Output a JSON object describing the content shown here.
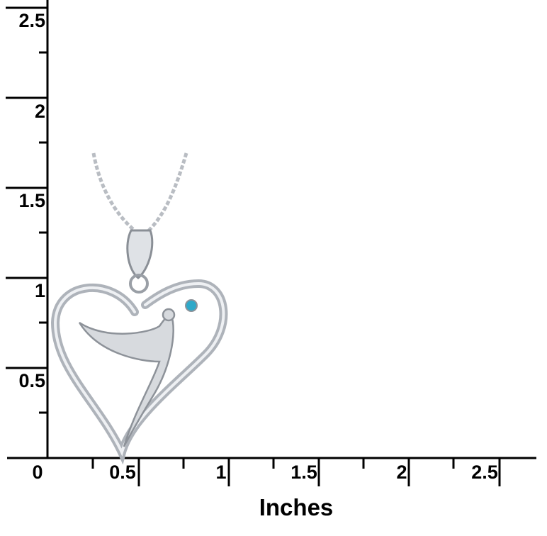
{
  "ruler": {
    "unit_label": "Inches",
    "y_labels": [
      "2.5",
      "2",
      "1.5",
      "1",
      "0.5"
    ],
    "x_labels": [
      "0",
      "0.5",
      "1",
      "1.5",
      "2",
      "2.5"
    ]
  },
  "product": {
    "description_icon": "heart-angel-pendant-necklace",
    "metal_color": "#c8ccd2",
    "gem_color": "#2fa9c9"
  }
}
